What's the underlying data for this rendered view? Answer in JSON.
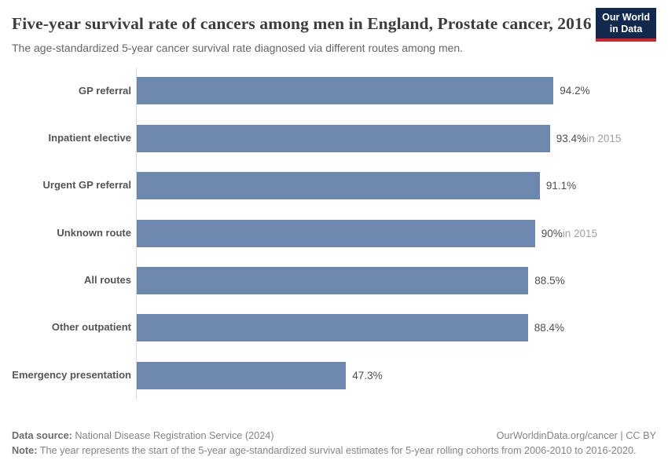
{
  "header": {
    "title": "Five-year survival rate of cancers among men in England, Prostate cancer, 2016",
    "subtitle": "The age-standardized 5-year cancer survival rate diagnosed via different routes among men.",
    "logo_line1": "Our World",
    "logo_line2": "in Data"
  },
  "chart_data": {
    "type": "bar",
    "orientation": "horizontal",
    "title": "Five-year survival rate of cancers among men in England, Prostate cancer, 2016",
    "subtitle": "The age-standardized 5-year cancer survival rate diagnosed via different routes among men.",
    "categories": [
      "GP referral",
      "Inpatient elective",
      "Urgent GP referral",
      "Unknown route",
      "All routes",
      "Other outpatient",
      "Emergency presentation"
    ],
    "values": [
      94.2,
      93.4,
      91.1,
      90,
      88.5,
      88.4,
      47.3
    ],
    "value_labels": [
      "94.2%",
      "93.4%",
      "91.1%",
      "90%",
      "88.5%",
      "88.4%",
      "47.3%"
    ],
    "value_suffixes": [
      "",
      "in 2015",
      "",
      "in 2015",
      "",
      "",
      ""
    ],
    "unit": "%",
    "xlim": [
      0,
      100
    ],
    "grid": false,
    "legend": "none"
  },
  "footer": {
    "data_source_label": "Data source:",
    "data_source_value": "National Disease Registration Service (2024)",
    "attribution": "OurWorldinData.org/cancer | CC BY",
    "note_label": "Note:",
    "note_value": "The year represents the start of the 5-year age-standardized survival estimates for 5-year rolling cohorts from 2006-2010 to 2016-2020."
  },
  "colors": {
    "bar": "#6e87af",
    "logo_bg": "#12294d",
    "logo_accent": "#d0242c",
    "title": "#3d3d3d",
    "subtitle": "#666666",
    "category_label": "#555555",
    "value_label": "#4f4f4f",
    "value_suffix": "#a1a1a1",
    "footer_text": "#858585",
    "axis_line": "#dadada"
  }
}
